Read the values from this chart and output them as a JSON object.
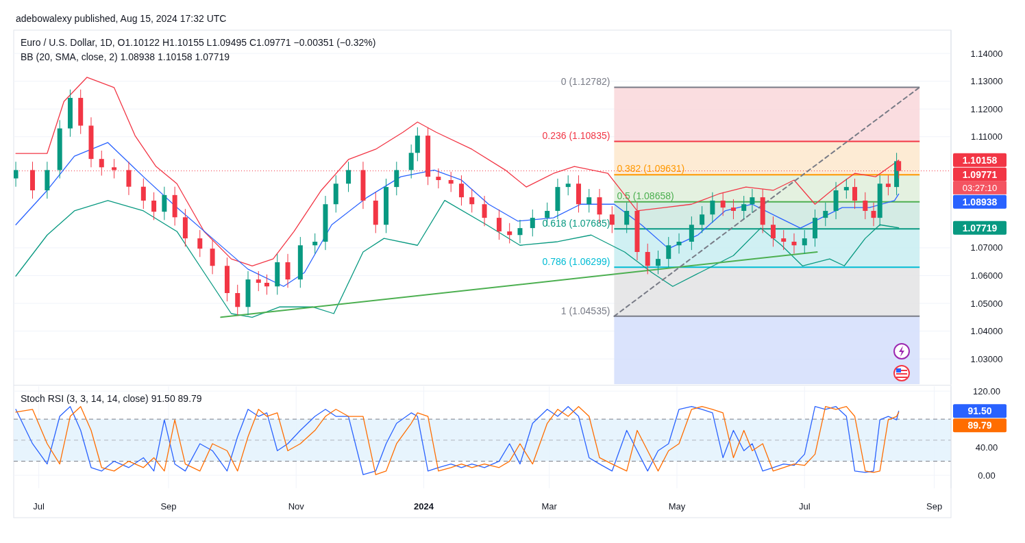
{
  "chart_data": [
    {
      "type": "candlestick",
      "title": "Euro / U.S. Dollar, 1D, O1.10122 H1.10155 L1.09495 C1.09771 −0.00351 (−0.32%)",
      "subtitle": "BB (20, SMA, close, 2) 1.08938 1.10158 1.07719",
      "annotations": [
        "adebowalexy published, Aug 15, 2024 17:32 UTC",
        "1.10158",
        "1.09771",
        "03:27:10",
        "1.08938",
        "1.07719"
      ],
      "x": [
        "2023-06-20",
        "2023-06-28",
        "2023-07-05",
        "2023-07-11",
        "2023-07-16",
        "2023-07-21",
        "2023-07-26",
        "2023-07-31",
        "2023-08-06",
        "2023-08-13",
        "2023-08-20",
        "2023-08-25",
        "2023-08-30",
        "2023-09-04",
        "2023-09-09",
        "2023-09-16",
        "2023-09-22",
        "2023-09-29",
        "2023-10-04",
        "2023-10-09",
        "2023-10-14",
        "2023-10-18",
        "2023-10-23",
        "2023-10-28",
        "2023-11-03",
        "2023-11-10",
        "2023-11-15",
        "2023-11-20",
        "2023-11-26",
        "2023-12-03",
        "2023-12-09",
        "2023-12-14",
        "2023-12-19",
        "2023-12-26",
        "2023-12-29",
        "2024-01-03",
        "2024-01-08",
        "2024-01-14",
        "2024-01-19",
        "2024-01-24",
        "2024-01-30",
        "2024-02-06",
        "2024-02-11",
        "2024-02-16",
        "2024-02-22",
        "2024-02-29",
        "2024-03-05",
        "2024-03-10",
        "2024-03-15",
        "2024-03-20",
        "2024-03-25",
        "2024-03-31",
        "2024-04-07",
        "2024-04-12",
        "2024-04-17",
        "2024-04-22",
        "2024-04-27",
        "2024-05-02",
        "2024-05-08",
        "2024-05-13",
        "2024-05-18",
        "2024-05-23",
        "2024-05-28",
        "2024-06-02",
        "2024-06-06",
        "2024-06-11",
        "2024-06-16",
        "2024-06-21",
        "2024-06-26",
        "2024-07-01",
        "2024-07-06",
        "2024-07-11",
        "2024-07-16",
        "2024-07-21",
        "2024-07-25",
        "2024-07-30",
        "2024-08-03",
        "2024-08-06",
        "2024-08-10",
        "2024-08-14",
        "2024-08-15"
      ],
      "ohlc": [
        [
          1.095,
          1.101,
          1.092,
          1.098
        ],
        [
          1.098,
          1.101,
          1.0877,
          1.0907
        ],
        [
          1.0907,
          1.101,
          1.0877,
          1.098
        ],
        [
          1.098,
          1.116,
          1.095,
          1.113
        ],
        [
          1.113,
          1.127,
          1.11,
          1.124
        ],
        [
          1.124,
          1.127,
          1.111,
          1.114
        ],
        [
          1.114,
          1.117,
          1.099,
          1.102
        ],
        [
          1.102,
          1.105,
          1.096,
          1.099
        ],
        [
          1.099,
          1.102,
          1.095,
          1.098
        ],
        [
          1.098,
          1.101,
          1.089,
          1.092
        ],
        [
          1.092,
          1.095,
          1.084,
          1.087
        ],
        [
          1.087,
          1.09,
          1.08,
          1.083
        ],
        [
          1.083,
          1.092,
          1.08,
          1.089
        ],
        [
          1.089,
          1.092,
          1.078,
          1.081
        ],
        [
          1.081,
          1.084,
          1.0704,
          1.0734
        ],
        [
          1.0734,
          1.0764,
          1.0667,
          1.0697
        ],
        [
          1.0697,
          1.0727,
          1.0605,
          1.0635
        ],
        [
          1.0635,
          1.0665,
          1.0507,
          1.0537
        ],
        [
          1.0537,
          1.0567,
          1.0457,
          1.0487
        ],
        [
          1.0487,
          1.0616,
          1.0457,
          1.0586
        ],
        [
          1.0586,
          1.0616,
          1.0544,
          1.0574
        ],
        [
          1.0574,
          1.0604,
          1.0531,
          1.0561
        ],
        [
          1.0561,
          1.0678,
          1.0531,
          1.0648
        ],
        [
          1.0648,
          1.0678,
          1.0556,
          1.0586
        ],
        [
          1.0586,
          1.0739,
          1.0556,
          1.0709
        ],
        [
          1.0709,
          1.0752,
          1.0679,
          1.0722
        ],
        [
          1.0722,
          1.0887,
          1.0692,
          1.0857
        ],
        [
          1.0857,
          1.0961,
          1.0827,
          1.0931
        ],
        [
          1.0931,
          1.101,
          1.0901,
          1.098
        ],
        [
          1.098,
          1.101,
          1.084,
          1.087
        ],
        [
          1.087,
          1.09,
          1.0753,
          1.0783
        ],
        [
          1.0783,
          1.0949,
          1.0753,
          1.0919
        ],
        [
          1.0919,
          1.101,
          1.0889,
          1.098
        ],
        [
          1.098,
          1.1072,
          1.095,
          1.1042
        ],
        [
          1.1042,
          1.1134,
          1.1012,
          1.1104
        ],
        [
          1.1104,
          1.1134,
          1.0926,
          1.0956
        ],
        [
          1.0956,
          1.0986,
          1.0914,
          1.0944
        ],
        [
          1.0944,
          1.0974,
          1.0901,
          1.0931
        ],
        [
          1.0931,
          1.0961,
          1.0852,
          1.0882
        ],
        [
          1.0882,
          1.0912,
          1.0827,
          1.0857
        ],
        [
          1.0857,
          1.0887,
          1.0778,
          1.0808
        ],
        [
          1.0808,
          1.0838,
          1.0729,
          1.0759
        ],
        [
          1.0759,
          1.0789,
          1.0716,
          1.0746
        ],
        [
          1.0746,
          1.0801,
          1.0716,
          1.0771
        ],
        [
          1.0771,
          1.0838,
          1.0741,
          1.0808
        ],
        [
          1.0808,
          1.0863,
          1.0778,
          1.0833
        ],
        [
          1.0833,
          1.0949,
          1.0803,
          1.0919
        ],
        [
          1.0919,
          1.0961,
          1.0889,
          1.0931
        ],
        [
          1.0931,
          1.0961,
          1.0827,
          1.0857
        ],
        [
          1.0857,
          1.0912,
          1.0827,
          1.0882
        ],
        [
          1.0882,
          1.0912,
          1.079,
          1.082
        ],
        [
          1.082,
          1.085,
          1.0753,
          1.0783
        ],
        [
          1.0783,
          1.0863,
          1.0753,
          1.0833
        ],
        [
          1.0833,
          1.0863,
          1.0655,
          1.0685
        ],
        [
          1.0685,
          1.0715,
          1.0605,
          1.0635
        ],
        [
          1.0635,
          1.069,
          1.0605,
          1.066
        ],
        [
          1.066,
          1.0739,
          1.063,
          1.0709
        ],
        [
          1.0709,
          1.0752,
          1.0679,
          1.0722
        ],
        [
          1.0722,
          1.0813,
          1.0692,
          1.0783
        ],
        [
          1.0783,
          1.085,
          1.0753,
          1.082
        ],
        [
          1.082,
          1.09,
          1.079,
          1.087
        ],
        [
          1.087,
          1.09,
          1.0815,
          1.0845
        ],
        [
          1.0845,
          1.0875,
          1.0803,
          1.0833
        ],
        [
          1.0833,
          1.0887,
          1.0803,
          1.0857
        ],
        [
          1.0857,
          1.0912,
          1.0827,
          1.0882
        ],
        [
          1.0882,
          1.0912,
          1.0753,
          1.0783
        ],
        [
          1.0783,
          1.0813,
          1.0704,
          1.0734
        ],
        [
          1.0734,
          1.0764,
          1.0692,
          1.0722
        ],
        [
          1.0722,
          1.0752,
          1.0679,
          1.0709
        ],
        [
          1.0709,
          1.0764,
          1.0679,
          1.0734
        ],
        [
          1.0734,
          1.0838,
          1.0704,
          1.0808
        ],
        [
          1.0808,
          1.0863,
          1.0778,
          1.0833
        ],
        [
          1.0833,
          1.0937,
          1.0803,
          1.0907
        ],
        [
          1.0907,
          1.0949,
          1.0877,
          1.0919
        ],
        [
          1.0919,
          1.0949,
          1.084,
          1.087
        ],
        [
          1.087,
          1.09,
          1.0803,
          1.0833
        ],
        [
          1.0833,
          1.0863,
          1.0778,
          1.0808
        ],
        [
          1.0808,
          1.0961,
          1.0778,
          1.0931
        ],
        [
          1.0931,
          1.0961,
          1.0889,
          1.0919
        ],
        [
          1.0919,
          1.1042,
          1.0889,
          1.1012
        ],
        [
          1.10122,
          1.10155,
          1.09495,
          1.09771
        ]
      ],
      "series": [
        {
          "type": "line",
          "color": "#f23645",
          "x": [
            "2023-06-20",
            "2023-07-05",
            "2023-07-13",
            "2023-07-24",
            "2023-08-06",
            "2023-08-16",
            "2023-08-26",
            "2023-09-05",
            "2023-09-18",
            "2023-10-01",
            "2023-10-11",
            "2023-10-21",
            "2023-10-31",
            "2023-11-13",
            "2023-11-26",
            "2023-12-09",
            "2023-12-22",
            "2023-12-29",
            "2024-01-07",
            "2024-01-24",
            "2024-02-09",
            "2024-02-19",
            "2024-03-03",
            "2024-03-13",
            "2024-03-29",
            "2024-04-12",
            "2024-04-25",
            "2024-05-08",
            "2024-05-21",
            "2024-06-03",
            "2024-06-16",
            "2024-06-26",
            "2024-07-06",
            "2024-07-16",
            "2024-07-25",
            "2024-08-04",
            "2024-08-14",
            "2024-08-15"
          ],
          "values": [
            1.104,
            1.104,
            1.1227,
            1.1314,
            1.1277,
            1.1104,
            1.0993,
            1.0931,
            1.0759,
            1.066,
            1.0635,
            1.066,
            1.0759,
            1.0907,
            1.1018,
            1.1055,
            1.1116,
            1.1153,
            1.1116,
            1.1055,
            1.098,
            1.0919,
            1.0968,
            1.0993,
            1.0968,
            1.0833,
            1.0845,
            1.0857,
            1.0894,
            1.0919,
            1.0907,
            1.0944,
            1.0857,
            1.0919,
            1.0968,
            1.0956,
            1.101,
            1.10158
          ]
        },
        {
          "type": "line",
          "color": "#2962ff",
          "x": [
            "2023-06-20",
            "2023-07-05",
            "2023-07-18",
            "2023-08-03",
            "2023-08-20",
            "2023-09-05",
            "2023-09-22",
            "2023-10-09",
            "2023-10-26",
            "2023-11-05",
            "2023-11-18",
            "2023-12-05",
            "2023-12-21",
            "2024-01-06",
            "2024-01-19",
            "2024-02-01",
            "2024-02-15",
            "2024-03-03",
            "2024-03-16",
            "2024-04-01",
            "2024-04-14",
            "2024-04-27",
            "2024-05-11",
            "2024-05-24",
            "2024-06-06",
            "2024-06-19",
            "2024-06-29",
            "2024-07-09",
            "2024-07-19",
            "2024-08-01",
            "2024-08-13",
            "2024-08-15"
          ],
          "values": [
            1.0783,
            1.0907,
            1.103,
            1.1079,
            1.0956,
            1.0845,
            1.0734,
            1.0623,
            1.0561,
            1.0611,
            1.0783,
            1.0882,
            1.0956,
            1.098,
            1.0944,
            1.0857,
            1.0796,
            1.0808,
            1.0857,
            1.0857,
            1.0783,
            1.0697,
            1.0746,
            1.0833,
            1.0857,
            1.0808,
            1.0771,
            1.0808,
            1.0845,
            1.0845,
            1.087,
            1.08938
          ]
        },
        {
          "type": "line",
          "color": "#089981",
          "x": [
            "2023-06-20",
            "2023-07-05",
            "2023-07-18",
            "2023-08-03",
            "2023-08-20",
            "2023-09-05",
            "2023-09-18",
            "2023-10-01",
            "2023-10-11",
            "2023-10-24",
            "2023-11-09",
            "2023-11-19",
            "2023-12-03",
            "2023-12-13",
            "2023-12-29",
            "2024-01-11",
            "2024-01-31",
            "2024-02-16",
            "2024-03-05",
            "2024-03-21",
            "2024-04-06",
            "2024-04-19",
            "2024-04-29",
            "2024-05-12",
            "2024-05-28",
            "2024-06-10",
            "2024-06-20",
            "2024-06-30",
            "2024-07-13",
            "2024-07-20",
            "2024-07-30",
            "2024-08-06",
            "2024-08-15"
          ],
          "values": [
            1.0598,
            1.0746,
            1.0833,
            1.087,
            1.0833,
            1.0759,
            1.0611,
            1.0463,
            1.045,
            1.0487,
            1.0487,
            1.0463,
            1.0685,
            1.0734,
            1.0709,
            1.0871,
            1.0783,
            1.0709,
            1.0722,
            1.0746,
            1.0685,
            1.0611,
            1.0561,
            1.0611,
            1.0672,
            1.0771,
            1.0709,
            1.0635,
            1.066,
            1.0635,
            1.0734,
            1.0783,
            1.07719
          ]
        },
        {
          "type": "line",
          "color": "#4caf50",
          "x": [
            "2023-09-26",
            "2024-07-07"
          ],
          "values": [
            1.045,
            1.0685
          ]
        },
        {
          "type": "line",
          "color": "#787b86",
          "line_style": "dashed",
          "x": [
            "2024-04-01",
            "2024-08-25"
          ],
          "values": [
            1.04535,
            1.12782
          ]
        }
      ],
      "ref_lines": [
        {
          "axis": "y",
          "value": 1.12782,
          "label": "0 (1.12782)",
          "color": "#787b86"
        },
        {
          "axis": "y",
          "value": 1.10835,
          "label": "0.236 (1.10835)",
          "color": "#f23645"
        },
        {
          "axis": "y",
          "value": 1.09631,
          "label": "0.382 (1.09631)",
          "color": "#ff9800"
        },
        {
          "axis": "y",
          "value": 1.08658,
          "label": "0.5 (1.08658)",
          "color": "#4caf50"
        },
        {
          "axis": "y",
          "value": 1.07685,
          "label": "0.618 (1.07685)",
          "color": "#089981"
        },
        {
          "axis": "y",
          "value": 1.06299,
          "label": "0.786 (1.06299)",
          "color": "#00bcd4"
        },
        {
          "axis": "y",
          "value": 1.04535,
          "label": "1 (1.04535)",
          "color": "#787b86"
        },
        {
          "axis": "y",
          "value": 1.09771,
          "color": "#f23645",
          "line_style": "dotted"
        }
      ],
      "bands": [
        {
          "axis": "y",
          "from": 1.10835,
          "to": 1.12782,
          "color": "#f9d7da"
        },
        {
          "axis": "y",
          "from": 1.09631,
          "to": 1.10835,
          "color": "#fde7cc"
        },
        {
          "axis": "y",
          "from": 1.08658,
          "to": 1.09631,
          "color": "#dfeedb"
        },
        {
          "axis": "y",
          "from": 1.07685,
          "to": 1.08658,
          "color": "#cde7df"
        },
        {
          "axis": "y",
          "from": 1.06299,
          "to": 1.07685,
          "color": "#c8edf1"
        },
        {
          "axis": "y",
          "from": 1.04535,
          "to": 1.06299,
          "color": "#e3e3e4"
        },
        {
          "axis": "y",
          "from": 1.0209,
          "to": 1.04535,
          "color": "#d3defb"
        }
      ],
      "xlim": [
        "2023-06-19",
        "2024-09-09"
      ],
      "ylim": [
        1.0209,
        1.1484
      ],
      "yticks": [
        {
          "value": 1.03,
          "label": "1.03000"
        },
        {
          "value": 1.04,
          "label": "1.04000"
        },
        {
          "value": 1.05,
          "label": "1.05000"
        },
        {
          "value": 1.06,
          "label": "1.06000"
        },
        {
          "value": 1.07,
          "label": "1.07000"
        },
        {
          "value": 1.11,
          "label": "1.11000"
        },
        {
          "value": 1.12,
          "label": "1.12000"
        },
        {
          "value": 1.13,
          "label": "1.13000"
        },
        {
          "value": 1.14,
          "label": "1.14000"
        }
      ],
      "tick_labels": "y",
      "grid": "y"
    },
    {
      "type": "line",
      "title": "Stoch RSI (3, 3, 14, 14, close) 91.50 89.79",
      "annotations": [
        "91.50",
        "89.79"
      ],
      "x": [
        "2023-06-20",
        "2023-06-28",
        "2023-07-05",
        "2023-07-11",
        "2023-07-16",
        "2023-07-21",
        "2023-07-26",
        "2023-07-31",
        "2023-08-06",
        "2023-08-13",
        "2023-08-20",
        "2023-08-25",
        "2023-08-30",
        "2023-09-04",
        "2023-09-09",
        "2023-09-16",
        "2023-09-22",
        "2023-09-29",
        "2023-10-04",
        "2023-10-09",
        "2023-10-14",
        "2023-10-18",
        "2023-10-23",
        "2023-10-28",
        "2023-11-03",
        "2023-11-10",
        "2023-11-15",
        "2023-11-20",
        "2023-11-26",
        "2023-12-03",
        "2023-12-09",
        "2023-12-14",
        "2023-12-19",
        "2023-12-26",
        "2023-12-29",
        "2024-01-03",
        "2024-01-08",
        "2024-01-14",
        "2024-01-19",
        "2024-01-24",
        "2024-01-30",
        "2024-02-06",
        "2024-02-11",
        "2024-02-16",
        "2024-02-22",
        "2024-02-29",
        "2024-03-05",
        "2024-03-10",
        "2024-03-15",
        "2024-03-20",
        "2024-03-25",
        "2024-03-31",
        "2024-04-07",
        "2024-04-12",
        "2024-04-17",
        "2024-04-22",
        "2024-04-27",
        "2024-05-02",
        "2024-05-08",
        "2024-05-13",
        "2024-05-18",
        "2024-05-23",
        "2024-05-28",
        "2024-06-02",
        "2024-06-06",
        "2024-06-11",
        "2024-06-16",
        "2024-06-21",
        "2024-06-26",
        "2024-07-01",
        "2024-07-06",
        "2024-07-11",
        "2024-07-16",
        "2024-07-21",
        "2024-07-25",
        "2024-07-30",
        "2024-08-03",
        "2024-08-06",
        "2024-08-10",
        "2024-08-14",
        "2024-08-15"
      ],
      "series": [
        {
          "color": "#2962ff",
          "values": [
            94,
            45,
            16,
            84,
            98,
            64,
            11,
            6,
            20,
            11,
            25,
            6,
            79,
            16,
            6,
            45,
            35,
            6,
            55,
            94,
            84,
            89,
            35,
            45,
            64,
            84,
            94,
            84,
            84,
            1,
            6,
            45,
            74,
            89,
            84,
            6,
            11,
            16,
            11,
            16,
            11,
            20,
            45,
            16,
            74,
            94,
            84,
            98,
            84,
            25,
            16,
            6,
            64,
            35,
            6,
            35,
            45,
            94,
            98,
            94,
            89,
            25,
            64,
            35,
            45,
            6,
            11,
            16,
            14,
            30,
            98,
            94,
            98,
            84,
            6,
            4,
            6,
            79,
            84,
            79,
            91.5
          ]
        },
        {
          "color": "#ff6d00",
          "values": [
            90,
            94,
            45,
            16,
            84,
            98,
            64,
            11,
            6,
            20,
            11,
            25,
            6,
            79,
            16,
            6,
            45,
            35,
            6,
            55,
            94,
            84,
            89,
            35,
            45,
            64,
            84,
            94,
            84,
            84,
            1,
            6,
            45,
            74,
            89,
            84,
            6,
            11,
            16,
            11,
            16,
            11,
            20,
            45,
            16,
            74,
            94,
            84,
            98,
            84,
            25,
            16,
            6,
            64,
            35,
            6,
            35,
            45,
            94,
            98,
            94,
            89,
            25,
            64,
            35,
            45,
            6,
            11,
            16,
            14,
            30,
            98,
            94,
            98,
            84,
            6,
            4,
            6,
            79,
            84,
            89.79
          ]
        }
      ],
      "ref_lines": [
        {
          "axis": "y",
          "value": 80,
          "color": "#787b86",
          "line_style": "dashed"
        },
        {
          "axis": "y",
          "value": 50,
          "color": "#b2b5be",
          "line_style": "dashed"
        },
        {
          "axis": "y",
          "value": 20,
          "color": "#787b86",
          "line_style": "dashed"
        }
      ],
      "bands": [
        {
          "axis": "y",
          "from": 20,
          "to": 80,
          "color": "#e3f2fd"
        }
      ],
      "xlim": [
        "2023-06-19",
        "2024-09-09"
      ],
      "xticks": [
        {
          "value": "2023-07-01",
          "label": "Jul"
        },
        {
          "value": "2023-09-01",
          "label": "Sep"
        },
        {
          "value": "2023-11-01",
          "label": "Nov"
        },
        {
          "value": "2024-01-01",
          "label": "2024"
        },
        {
          "value": "2024-03-01",
          "label": "Mar"
        },
        {
          "value": "2024-05-01",
          "label": "May"
        },
        {
          "value": "2024-07-01",
          "label": "Jul"
        },
        {
          "value": "2024-09-01",
          "label": "Sep"
        }
      ],
      "ylim": [
        -18.5,
        127
      ],
      "yticks": [
        {
          "value": 0,
          "label": "0.00"
        },
        {
          "value": 40,
          "label": "40.00"
        },
        {
          "value": 120,
          "label": "120.00"
        }
      ],
      "grid": true
    }
  ]
}
